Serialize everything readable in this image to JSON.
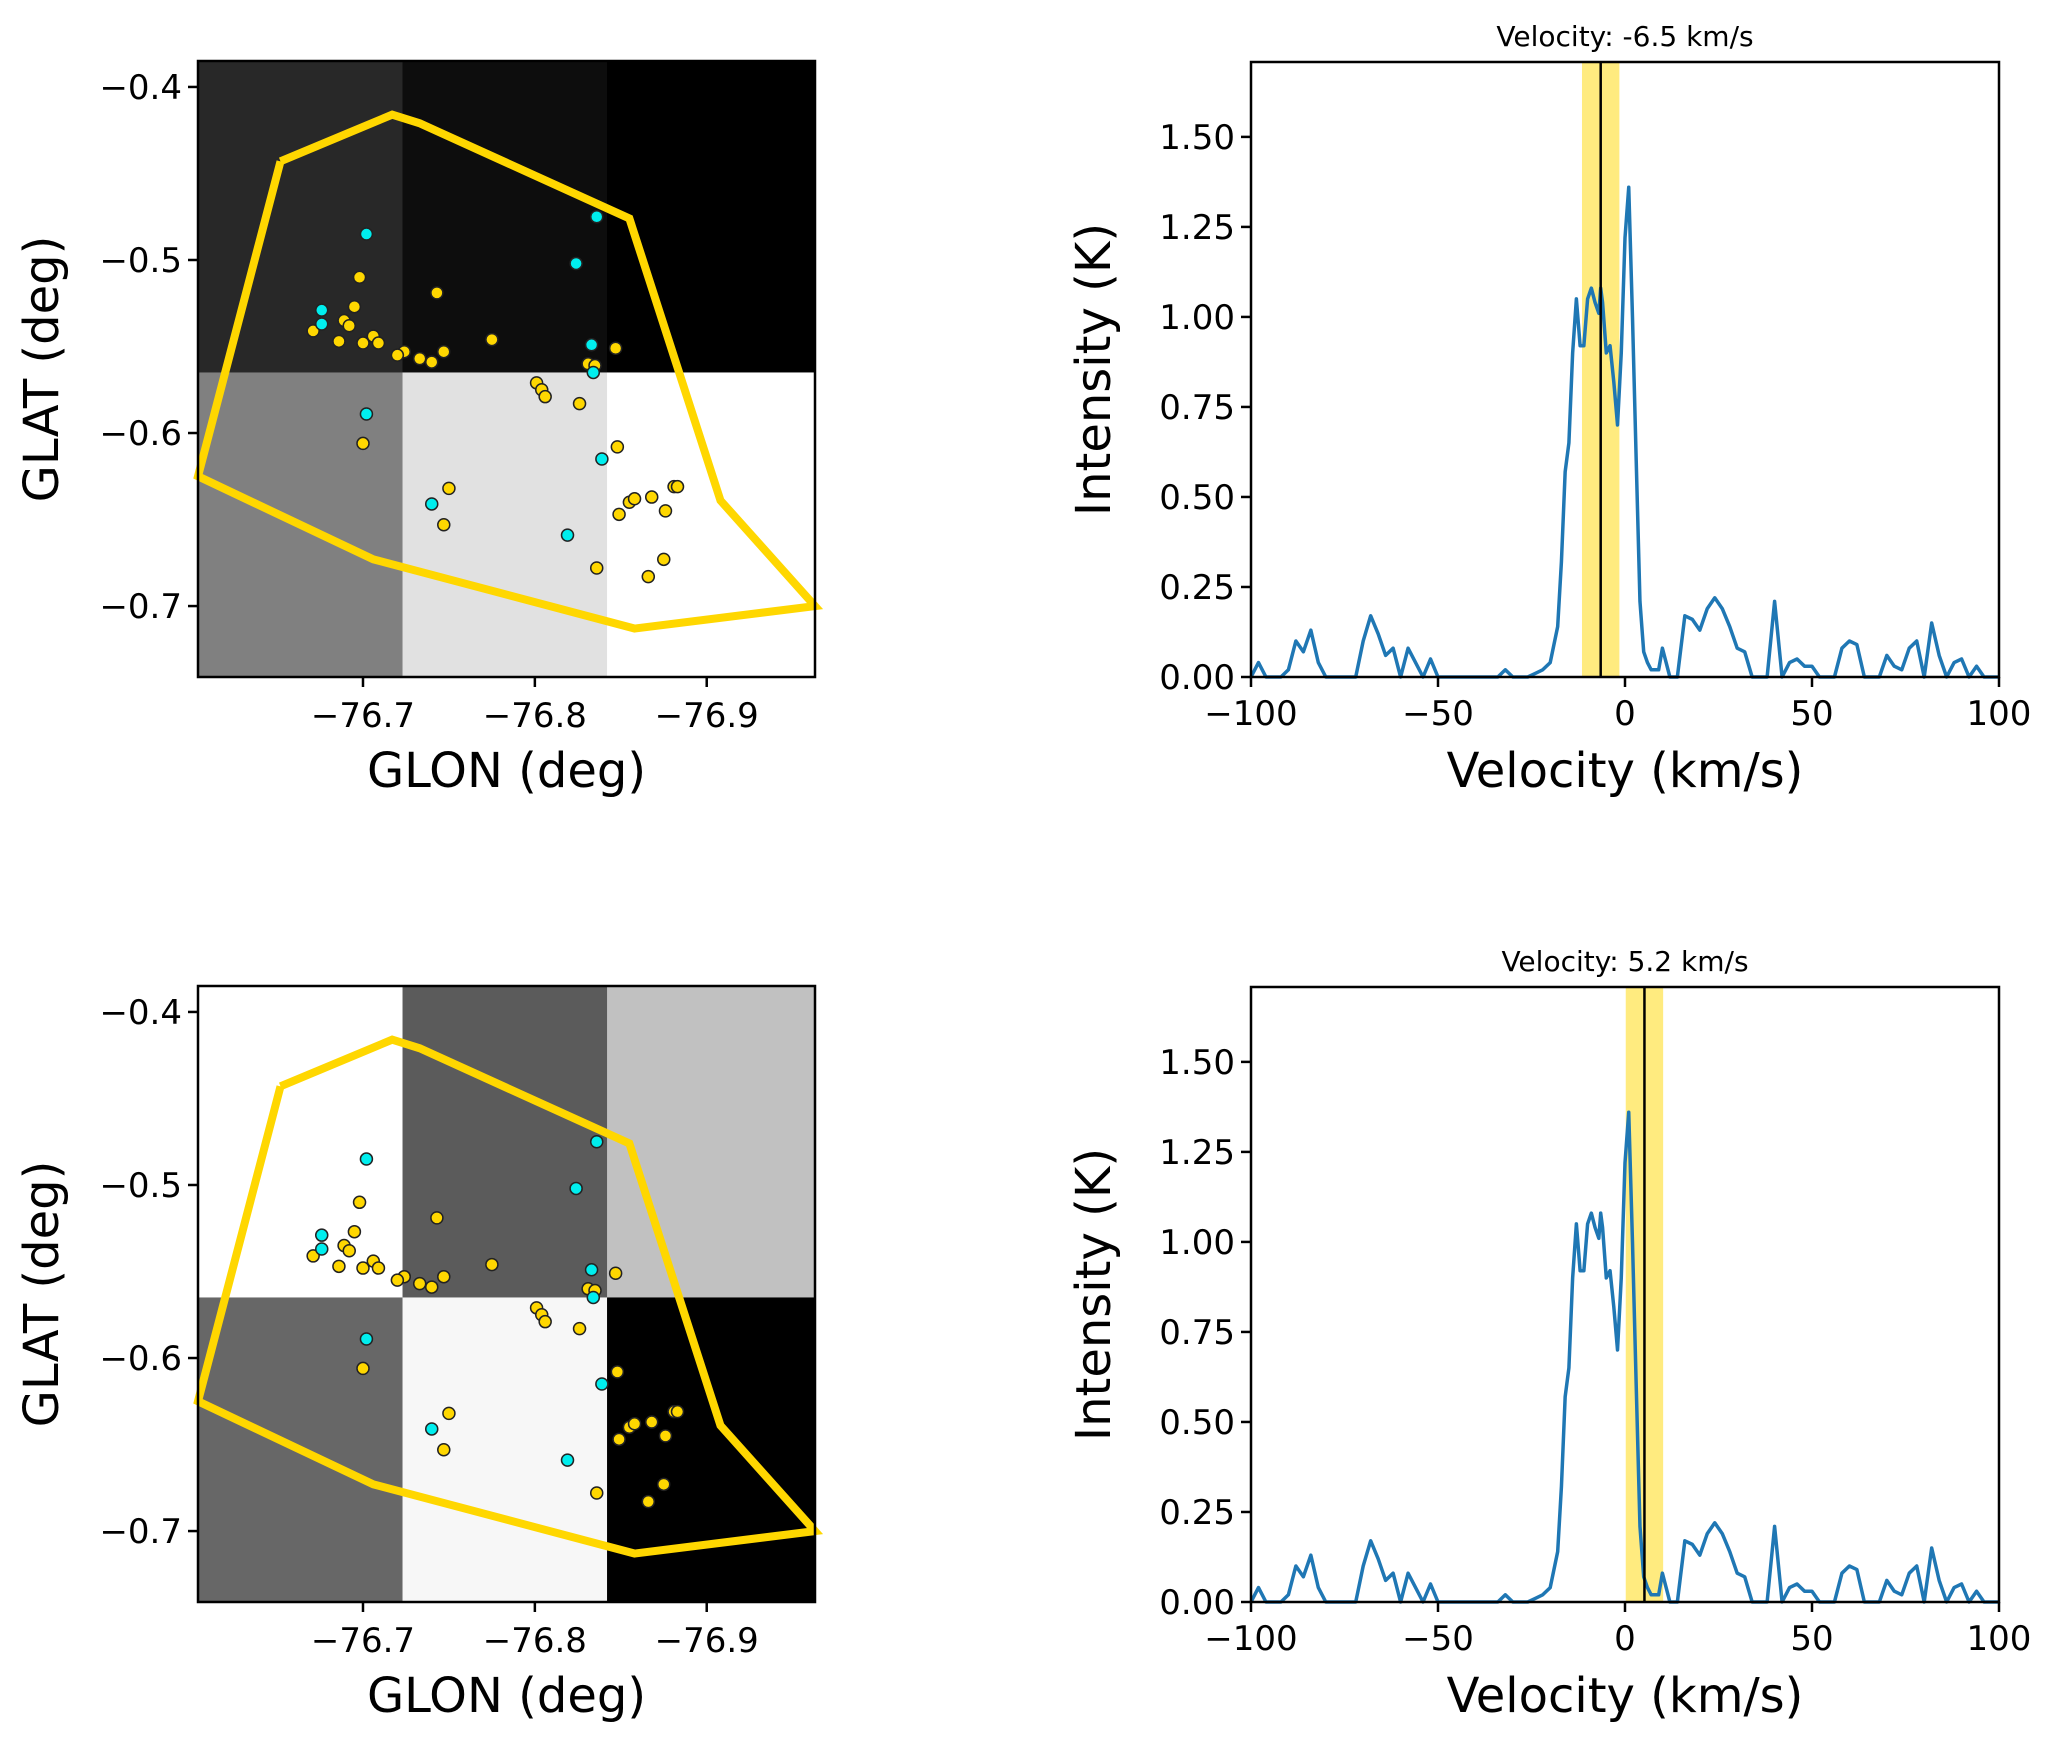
{
  "figure": {
    "description": "Two rows: sky map with source points and polygon, and spectrum with highlighted velocity channel"
  },
  "chart_data": [
    {
      "type": "heatmap",
      "panel": "map-top",
      "xlabel": "GLON (deg)",
      "ylabel": "GLAT (deg)",
      "xlim": [
        -76.604,
        -76.963
      ],
      "ylim": [
        -0.741,
        -0.385
      ],
      "xticks": [
        -76.7,
        -76.8,
        -76.9
      ],
      "xtick_labels": [
        "−76.7",
        "−76.8",
        "−76.9"
      ],
      "yticks": [
        -0.4,
        -0.5,
        -0.6,
        -0.7
      ],
      "ytick_labels": [
        "−0.4",
        "−0.5",
        "−0.6",
        "−0.7"
      ],
      "grid_cells": {
        "x_edges": [
          -76.604,
          -76.723,
          -76.842,
          -76.963
        ],
        "y_edges": [
          -0.385,
          -0.565,
          -0.741
        ],
        "gray_values": [
          [
            "#282828",
            "#0d0d0d",
            "#000000"
          ],
          [
            "#808080",
            "#e1e1e1",
            "#ffffff"
          ]
        ]
      },
      "polygon": {
        "color": "#ffd700",
        "points": [
          [
            -76.652,
            -0.443
          ],
          [
            -76.717,
            -0.416
          ],
          [
            -76.733,
            -0.421
          ],
          [
            -76.855,
            -0.476
          ],
          [
            -76.908,
            -0.639
          ],
          [
            -76.963,
            -0.7
          ],
          [
            -76.858,
            -0.713
          ],
          [
            -76.706,
            -0.673
          ],
          [
            -76.604,
            -0.625
          ],
          [
            -76.652,
            -0.443
          ]
        ]
      },
      "points_gold": [
        [
          -76.698,
          -0.51
        ],
        [
          -76.743,
          -0.519
        ],
        [
          -76.695,
          -0.527
        ],
        [
          -76.689,
          -0.535
        ],
        [
          -76.692,
          -0.538
        ],
        [
          -76.671,
          -0.541
        ],
        [
          -76.686,
          -0.547
        ],
        [
          -76.706,
          -0.544
        ],
        [
          -76.7,
          -0.548
        ],
        [
          -76.709,
          -0.548
        ],
        [
          -76.724,
          -0.553
        ],
        [
          -76.72,
          -0.555
        ],
        [
          -76.733,
          -0.557
        ],
        [
          -76.74,
          -0.559
        ],
        [
          -76.747,
          -0.553
        ],
        [
          -76.775,
          -0.546
        ],
        [
          -76.831,
          -0.56
        ],
        [
          -76.835,
          -0.561
        ],
        [
          -76.847,
          -0.551
        ],
        [
          -76.801,
          -0.571
        ],
        [
          -76.804,
          -0.575
        ],
        [
          -76.806,
          -0.579
        ],
        [
          -76.826,
          -0.583
        ],
        [
          -76.7,
          -0.606
        ],
        [
          -76.848,
          -0.608
        ],
        [
          -76.75,
          -0.632
        ],
        [
          -76.747,
          -0.653
        ],
        [
          -76.855,
          -0.64
        ],
        [
          -76.858,
          -0.638
        ],
        [
          -76.868,
          -0.637
        ],
        [
          -76.881,
          -0.631
        ],
        [
          -76.883,
          -0.631
        ],
        [
          -76.876,
          -0.645
        ],
        [
          -76.849,
          -0.647
        ],
        [
          -76.875,
          -0.673
        ],
        [
          -76.866,
          -0.683
        ],
        [
          -76.836,
          -0.678
        ]
      ],
      "points_cyan": [
        [
          -76.702,
          -0.485
        ],
        [
          -76.836,
          -0.475
        ],
        [
          -76.824,
          -0.502
        ],
        [
          -76.676,
          -0.529
        ],
        [
          -76.676,
          -0.537
        ],
        [
          -76.833,
          -0.549
        ],
        [
          -76.834,
          -0.565
        ],
        [
          -76.702,
          -0.589
        ],
        [
          -76.839,
          -0.615
        ],
        [
          -76.74,
          -0.641
        ],
        [
          -76.819,
          -0.659
        ]
      ]
    },
    {
      "type": "line",
      "panel": "spectrum-top",
      "title": "Velocity: -6.5 km/s",
      "xlabel": "Velocity (km/s)",
      "ylabel": "Intensity (K)",
      "xlim": [
        -100,
        100
      ],
      "ylim": [
        0,
        1.708
      ],
      "xticks": [
        -100,
        -50,
        0,
        50,
        100
      ],
      "xtick_labels": [
        "−100",
        "−50",
        "0",
        "50",
        "100"
      ],
      "yticks": [
        0,
        0.25,
        0.5,
        0.75,
        1.0,
        1.25,
        1.5
      ],
      "ytick_labels": [
        "0.00",
        "0.25",
        "0.50",
        "0.75",
        "1.00",
        "1.25",
        "1.50"
      ],
      "marker_velocity": -6.5,
      "band": [
        -11.5,
        -1.5
      ],
      "band_color": "#ffd700",
      "line_color": "#1f77b4"
    },
    {
      "type": "heatmap",
      "panel": "map-bottom",
      "xlabel": "GLON (deg)",
      "ylabel": "GLAT (deg)",
      "xlim": [
        -76.604,
        -76.963
      ],
      "ylim": [
        -0.741,
        -0.385
      ],
      "xticks": [
        -76.7,
        -76.8,
        -76.9
      ],
      "xtick_labels": [
        "−76.7",
        "−76.8",
        "−76.9"
      ],
      "yticks": [
        -0.4,
        -0.5,
        -0.6,
        -0.7
      ],
      "ytick_labels": [
        "−0.4",
        "−0.5",
        "−0.6",
        "−0.7"
      ],
      "grid_cells": {
        "x_edges": [
          -76.604,
          -76.723,
          -76.842,
          -76.963
        ],
        "y_edges": [
          -0.385,
          -0.565,
          -0.741
        ],
        "gray_values": [
          [
            "#ffffff",
            "#5b5b5b",
            "#c1c1c1"
          ],
          [
            "#676767",
            "#f7f7f7",
            "#000000"
          ]
        ]
      },
      "same_polygon_and_points_as": "map-top"
    },
    {
      "type": "line",
      "panel": "spectrum-bottom",
      "title": "Velocity: 5.2 km/s",
      "xlabel": "Velocity (km/s)",
      "ylabel": "Intensity (K)",
      "xlim": [
        -100,
        100
      ],
      "ylim": [
        0,
        1.708
      ],
      "xticks": [
        -100,
        -50,
        0,
        50,
        100
      ],
      "xtick_labels": [
        "−100",
        "−50",
        "0",
        "50",
        "100"
      ],
      "yticks": [
        0,
        0.25,
        0.5,
        0.75,
        1.0,
        1.25,
        1.5
      ],
      "ytick_labels": [
        "0.00",
        "0.25",
        "0.50",
        "0.75",
        "1.00",
        "1.25",
        "1.50"
      ],
      "marker_velocity": 5.2,
      "band": [
        0.2,
        10.2
      ],
      "band_color": "#ffd700",
      "line_color": "#1f77b4"
    }
  ],
  "spectrum": {
    "velocity": [
      -100,
      -98,
      -96,
      -94,
      -92,
      -90,
      -88,
      -86,
      -84,
      -82,
      -80,
      -78,
      -76,
      -74,
      -72,
      -70,
      -68,
      -66,
      -64,
      -62,
      -60,
      -58,
      -56,
      -54,
      -52,
      -50,
      -48,
      -46,
      -44,
      -42,
      -40,
      -38,
      -36,
      -34,
      -32,
      -30,
      -28,
      -26,
      -24,
      -22,
      -20,
      -18,
      -17,
      -16,
      -15,
      -14,
      -13,
      -12,
      -11,
      -10,
      -9,
      -8,
      -7,
      -6.5,
      -6,
      -5,
      -4,
      -3,
      -2,
      -1,
      0,
      1,
      2,
      3,
      4,
      5,
      6,
      7,
      8,
      9,
      10,
      11,
      12,
      14,
      16,
      18,
      20,
      22,
      24,
      26,
      28,
      30,
      32,
      34,
      36,
      38,
      40,
      42,
      44,
      46,
      48,
      50,
      52,
      54,
      56,
      58,
      60,
      62,
      64,
      66,
      68,
      70,
      72,
      74,
      76,
      78,
      80,
      82,
      84,
      86,
      88,
      90,
      92,
      94,
      96,
      98,
      100
    ],
    "intensity": [
      0.0,
      0.04,
      0.0,
      0.0,
      0.0,
      0.02,
      0.1,
      0.07,
      0.13,
      0.04,
      0.0,
      0.0,
      0.0,
      0.0,
      0.0,
      0.1,
      0.17,
      0.12,
      0.06,
      0.08,
      0.0,
      0.08,
      0.04,
      0.0,
      0.05,
      0.0,
      0.0,
      0.0,
      0.0,
      0.0,
      0.0,
      0.0,
      0.0,
      0.0,
      0.02,
      0.0,
      0.0,
      0.0,
      0.01,
      0.02,
      0.04,
      0.14,
      0.32,
      0.57,
      0.65,
      0.9,
      1.05,
      0.92,
      0.92,
      1.05,
      1.08,
      1.04,
      1.01,
      1.08,
      1.04,
      0.9,
      0.92,
      0.82,
      0.7,
      0.9,
      1.22,
      1.36,
      1.0,
      0.6,
      0.21,
      0.07,
      0.04,
      0.02,
      0.02,
      0.02,
      0.08,
      0.04,
      0.0,
      0.0,
      0.17,
      0.16,
      0.13,
      0.19,
      0.22,
      0.19,
      0.14,
      0.08,
      0.07,
      0.0,
      0.0,
      0.0,
      0.21,
      0.0,
      0.04,
      0.05,
      0.03,
      0.03,
      0.0,
      0.0,
      0.0,
      0.08,
      0.1,
      0.09,
      0.0,
      0.0,
      0.0,
      0.06,
      0.03,
      0.02,
      0.08,
      0.1,
      0.0,
      0.15,
      0.06,
      0.0,
      0.04,
      0.05,
      0.0,
      0.03,
      0.0,
      0.0,
      0.0,
      0.0,
      0.06,
      0.11
    ]
  }
}
